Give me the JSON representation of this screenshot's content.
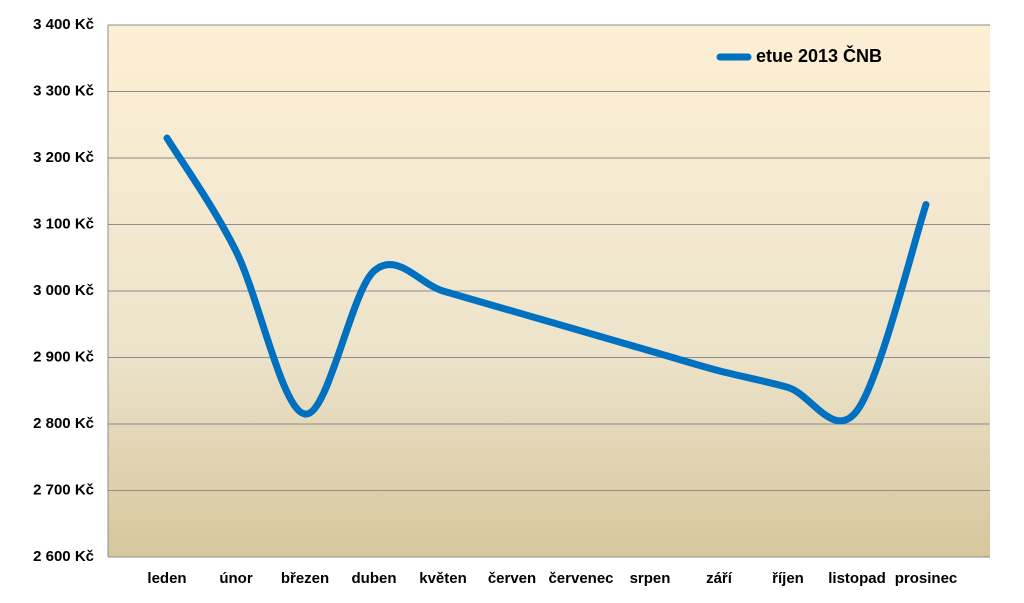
{
  "chart_data": {
    "type": "line",
    "categories": [
      "leden",
      "únor",
      "březen",
      "duben",
      "květen",
      "červen",
      "červenec",
      "srpen",
      "září",
      "říjen",
      "listopad",
      "prosinec"
    ],
    "series": [
      {
        "name": "etue 2013 ČNB",
        "color": "#0070c0",
        "values": [
          3230,
          3060,
          2815,
          3030,
          3000,
          2970,
          2940,
          2910,
          2880,
          2855,
          2820,
          3130
        ]
      }
    ],
    "ylim": [
      2600,
      3400
    ],
    "yticks": [
      {
        "value": 2600,
        "label": "2 600 Kč"
      },
      {
        "value": 2700,
        "label": "2 700 Kč"
      },
      {
        "value": 2800,
        "label": "2 800 Kč"
      },
      {
        "value": 2900,
        "label": "2 900 Kč"
      },
      {
        "value": 3000,
        "label": "3 000 Kč"
      },
      {
        "value": 3100,
        "label": "3 100 Kč"
      },
      {
        "value": 3200,
        "label": "3 200 Kč"
      },
      {
        "value": 3300,
        "label": "3 300 Kč"
      },
      {
        "value": 3400,
        "label": "3 400 Kč"
      }
    ],
    "grid": true,
    "legend": "top-right"
  }
}
